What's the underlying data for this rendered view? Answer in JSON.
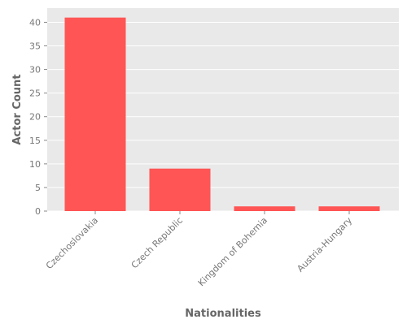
{
  "chart_data": {
    "type": "bar",
    "title": "",
    "xlabel": "Nationalities",
    "ylabel": "Actor Count",
    "categories": [
      "Czechoslovakia",
      "Czech Republic",
      "Kingdom of Bohemia",
      "Austria-Hungary"
    ],
    "values": [
      41,
      9,
      1,
      1
    ],
    "ylim": [
      0,
      43
    ],
    "yticks": [
      0,
      5,
      10,
      15,
      20,
      25,
      30,
      35,
      40
    ],
    "grid": true,
    "legend": "none"
  },
  "colors": {
    "bar": "#ff5555",
    "plot_background": "#e9e9e9",
    "grid": "#ffffff",
    "tick_text": "#777777",
    "axis_title_text": "#666666"
  }
}
